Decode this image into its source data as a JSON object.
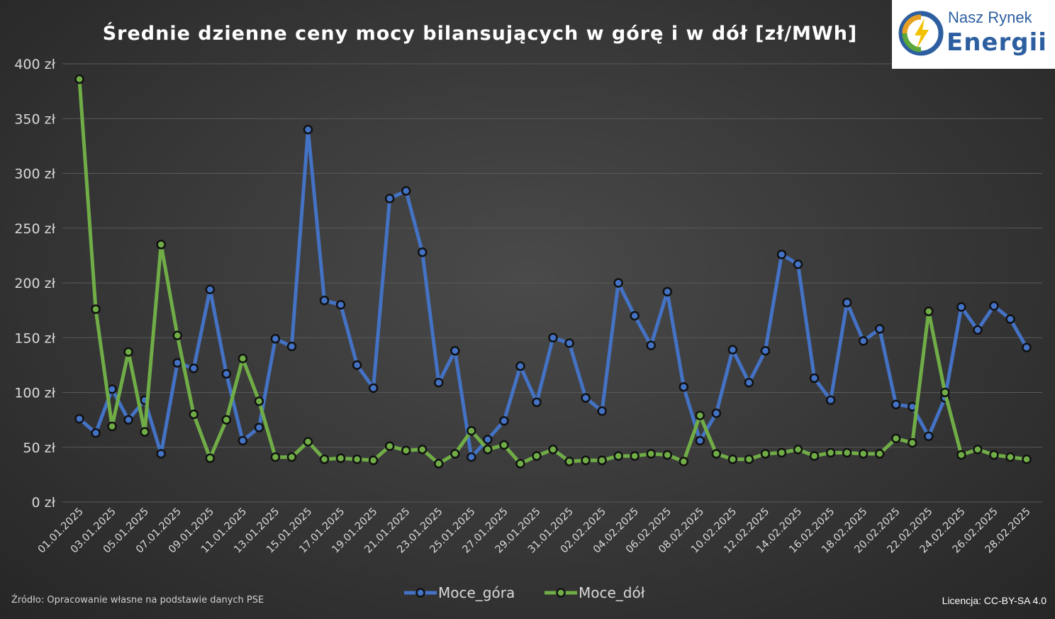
{
  "header": {
    "title": "Średnie dzienne ceny mocy bilansujących w górę i w dół [zł/MWh]"
  },
  "logo": {
    "line1": "Nasz Rynek",
    "line2": "Energii"
  },
  "footer": {
    "source": "Źródło: Opracowanie własne na podstawie danych PSE",
    "license": "Licencja: CC-BY-SA 4.0"
  },
  "colors": {
    "series_up": "#4472c4",
    "series_down": "#70ad47",
    "marker_fill": "#1f1f1f",
    "gridline": "#595959"
  },
  "chart_data": {
    "type": "line",
    "title": "Średnie dzienne ceny mocy bilansujących w górę i w dół [zł/MWh]",
    "xlabel": "",
    "ylabel": "",
    "ylim": [
      0,
      400
    ],
    "yticks": [
      "0 zł",
      "50 zł",
      "100 zł",
      "150 zł",
      "200 zł",
      "250 zł",
      "300 zł",
      "350 zł",
      "400 zł"
    ],
    "grid": true,
    "legend_position": "bottom",
    "x": [
      "01.01.2025",
      "02.01.2025",
      "03.01.2025",
      "04.01.2025",
      "05.01.2025",
      "06.01.2025",
      "07.01.2025",
      "08.01.2025",
      "09.01.2025",
      "10.01.2025",
      "11.01.2025",
      "12.01.2025",
      "13.01.2025",
      "14.01.2025",
      "15.01.2025",
      "16.01.2025",
      "17.01.2025",
      "18.01.2025",
      "19.01.2025",
      "20.01.2025",
      "21.01.2025",
      "22.01.2025",
      "23.01.2025",
      "24.01.2025",
      "25.01.2025",
      "26.01.2025",
      "27.01.2025",
      "28.01.2025",
      "29.01.2025",
      "30.01.2025",
      "31.01.2025",
      "01.02.2025",
      "02.02.2025",
      "03.02.2025",
      "04.02.2025",
      "05.02.2025",
      "06.02.2025",
      "07.02.2025",
      "08.02.2025",
      "09.02.2025",
      "10.02.2025",
      "11.02.2025",
      "12.02.2025",
      "13.02.2025",
      "14.02.2025",
      "15.02.2025",
      "16.02.2025",
      "17.02.2025",
      "18.02.2025",
      "19.02.2025",
      "20.02.2025",
      "21.02.2025",
      "22.02.2025",
      "23.02.2025",
      "24.02.2025",
      "25.02.2025",
      "26.02.2025",
      "27.02.2025",
      "28.02.2025"
    ],
    "xticks": [
      "01.01.2025",
      "03.01.2025",
      "05.01.2025",
      "07.01.2025",
      "09.01.2025",
      "11.01.2025",
      "13.01.2025",
      "15.01.2025",
      "17.01.2025",
      "19.01.2025",
      "21.01.2025",
      "23.01.2025",
      "25.01.2025",
      "27.01.2025",
      "29.01.2025",
      "31.01.2025",
      "02.02.2025",
      "04.02.2025",
      "06.02.2025",
      "08.02.2025",
      "10.02.2025",
      "12.02.2025",
      "14.02.2025",
      "16.02.2025",
      "18.02.2025",
      "20.02.2025",
      "22.02.2025",
      "24.02.2025",
      "26.02.2025",
      "28.02.2025"
    ],
    "series": [
      {
        "name": "Moce_góra",
        "values": [
          76,
          63,
          103,
          75,
          93,
          44,
          127,
          122,
          194,
          117,
          56,
          68,
          149,
          142,
          340,
          184,
          180,
          125,
          104,
          277,
          284,
          228,
          109,
          138,
          41,
          57,
          74,
          124,
          91,
          150,
          145,
          95,
          83,
          200,
          170,
          143,
          192,
          105,
          56,
          81,
          139,
          109,
          138,
          226,
          217,
          113,
          93,
          182,
          147,
          158,
          89,
          87,
          60,
          95,
          178,
          157,
          179,
          167,
          141
        ]
      },
      {
        "name": "Moce_dół",
        "values": [
          386,
          176,
          69,
          137,
          64,
          235,
          152,
          80,
          40,
          75,
          131,
          92,
          41,
          41,
          55,
          39,
          40,
          39,
          38,
          51,
          47,
          48,
          35,
          44,
          65,
          48,
          52,
          35,
          42,
          48,
          37,
          38,
          38,
          42,
          42,
          44,
          43,
          37,
          79,
          44,
          39,
          39,
          44,
          45,
          48,
          42,
          45,
          45,
          44,
          44,
          58,
          54,
          174,
          100,
          43,
          48,
          43,
          41,
          39
        ]
      }
    ]
  }
}
